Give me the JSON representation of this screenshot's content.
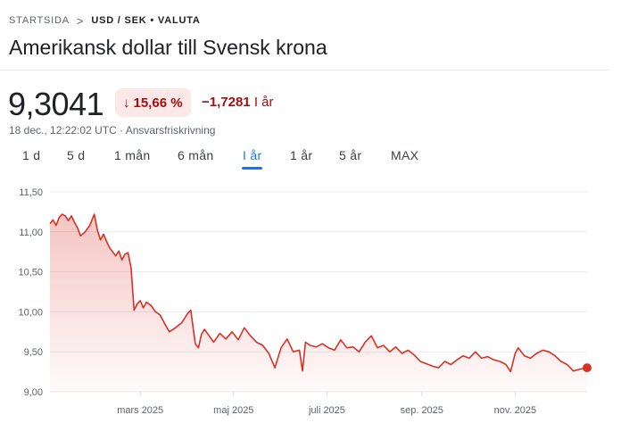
{
  "breadcrumb": {
    "home": "STARTSIDA",
    "separator": ">",
    "current": "USD / SEK • VALUTA"
  },
  "title": "Amerikansk dollar till Svensk krona",
  "quote": {
    "price": "9,3041",
    "change_pct": "15,66 %",
    "change_arrow": "↓",
    "change_abs": "−1,7281",
    "change_period": "I år",
    "timestamp": "18 dec., 12:22:02 UTC · Ansvarsfriskrivning"
  },
  "tabs": [
    {
      "label": "1 d",
      "active": false
    },
    {
      "label": "5 d",
      "active": false
    },
    {
      "label": "1 mån",
      "active": false
    },
    {
      "label": "6 mån",
      "active": false
    },
    {
      "label": "I år",
      "active": true
    },
    {
      "label": "1 år",
      "active": false
    },
    {
      "label": "5 år",
      "active": false
    },
    {
      "label": "MAX",
      "active": false
    }
  ],
  "colors": {
    "line": "#d93025",
    "negative": "#a50e0e",
    "badge_bg": "#fce8e6",
    "accent": "#1a73e8",
    "grid": "#e8eaed",
    "axis_text": "#5f6368"
  },
  "chart_data": {
    "type": "area",
    "ylim": [
      9.0,
      11.5
    ],
    "y_ticks": [
      "11,50",
      "11,00",
      "10,50",
      "10,00",
      "9,50",
      "9,00"
    ],
    "y_tick_values": [
      11.5,
      11.0,
      10.5,
      10.0,
      9.5,
      9.0
    ],
    "x_range": [
      "2025-01-01",
      "2025-12-18"
    ],
    "x_ticks": [
      {
        "date": "2025-03-01",
        "label": "mars 2025"
      },
      {
        "date": "2025-05-01",
        "label": "maj 2025"
      },
      {
        "date": "2025-07-01",
        "label": "juli 2025"
      },
      {
        "date": "2025-09-01",
        "label": "sep. 2025"
      },
      {
        "date": "2025-11-01",
        "label": "nov. 2025"
      }
    ],
    "grid": true,
    "series": [
      {
        "x": [
          "2025-01-01",
          "2025-01-03",
          "2025-01-05",
          "2025-01-07",
          "2025-01-09",
          "2025-01-11",
          "2025-01-13",
          "2025-01-15",
          "2025-01-17",
          "2025-01-19",
          "2025-01-21",
          "2025-01-24",
          "2025-01-27",
          "2025-01-30",
          "2025-02-01",
          "2025-02-03",
          "2025-02-05",
          "2025-02-07",
          "2025-02-09",
          "2025-02-11",
          "2025-02-13",
          "2025-02-15",
          "2025-02-17",
          "2025-02-19",
          "2025-02-21",
          "2025-02-23",
          "2025-02-25",
          "2025-02-27",
          "2025-03-01",
          "2025-03-03",
          "2025-03-05",
          "2025-03-08",
          "2025-03-11",
          "2025-03-14",
          "2025-03-17",
          "2025-03-20",
          "2025-03-24",
          "2025-03-28",
          "2025-04-01",
          "2025-04-03",
          "2025-04-06",
          "2025-04-08",
          "2025-04-10",
          "2025-04-12",
          "2025-04-15",
          "2025-04-18",
          "2025-04-22",
          "2025-04-26",
          "2025-04-30",
          "2025-05-04",
          "2025-05-08",
          "2025-05-12",
          "2025-05-16",
          "2025-05-20",
          "2025-05-24",
          "2025-05-28",
          "2025-06-01",
          "2025-06-05",
          "2025-06-09",
          "2025-06-13",
          "2025-06-15",
          "2025-06-17",
          "2025-06-20",
          "2025-06-24",
          "2025-06-28",
          "2025-07-02",
          "2025-07-06",
          "2025-07-10",
          "2025-07-14",
          "2025-07-18",
          "2025-07-22",
          "2025-07-26",
          "2025-07-30",
          "2025-08-03",
          "2025-08-07",
          "2025-08-11",
          "2025-08-15",
          "2025-08-19",
          "2025-08-23",
          "2025-08-27",
          "2025-08-31",
          "2025-09-04",
          "2025-09-08",
          "2025-09-12",
          "2025-09-16",
          "2025-09-20",
          "2025-09-24",
          "2025-09-28",
          "2025-10-02",
          "2025-10-06",
          "2025-10-10",
          "2025-10-14",
          "2025-10-18",
          "2025-10-22",
          "2025-10-26",
          "2025-10-29",
          "2025-11-01",
          "2025-11-03",
          "2025-11-07",
          "2025-11-11",
          "2025-11-15",
          "2025-11-19",
          "2025-11-23",
          "2025-11-27",
          "2025-12-01",
          "2025-12-05",
          "2025-12-09",
          "2025-12-13",
          "2025-12-18"
        ],
        "values": [
          11.1,
          11.15,
          11.08,
          11.18,
          11.22,
          11.2,
          11.14,
          11.2,
          11.12,
          11.05,
          10.95,
          11.0,
          11.08,
          11.22,
          11.02,
          10.9,
          10.97,
          10.88,
          10.8,
          10.75,
          10.7,
          10.76,
          10.65,
          10.72,
          10.74,
          10.55,
          10.02,
          10.1,
          10.14,
          10.05,
          10.12,
          10.08,
          10.0,
          9.96,
          9.85,
          9.75,
          9.8,
          9.86,
          9.98,
          10.02,
          9.6,
          9.55,
          9.72,
          9.78,
          9.7,
          9.62,
          9.73,
          9.66,
          9.75,
          9.65,
          9.8,
          9.7,
          9.62,
          9.58,
          9.48,
          9.3,
          9.55,
          9.66,
          9.5,
          9.52,
          9.26,
          9.62,
          9.58,
          9.56,
          9.6,
          9.55,
          9.52,
          9.65,
          9.55,
          9.56,
          9.5,
          9.62,
          9.7,
          9.55,
          9.58,
          9.5,
          9.56,
          9.48,
          9.52,
          9.46,
          9.38,
          9.35,
          9.32,
          9.3,
          9.38,
          9.34,
          9.4,
          9.45,
          9.42,
          9.5,
          9.42,
          9.44,
          9.4,
          9.38,
          9.34,
          9.25,
          9.48,
          9.55,
          9.45,
          9.42,
          9.48,
          9.52,
          9.5,
          9.45,
          9.38,
          9.34,
          9.26,
          9.28,
          9.3
        ]
      }
    ]
  }
}
